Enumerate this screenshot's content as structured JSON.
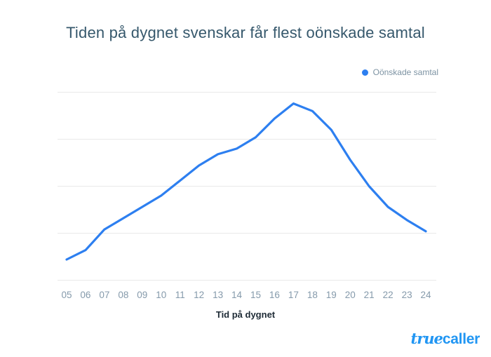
{
  "header": {
    "title": "Tiden på dygnet svenskar får flest oönskade samtal"
  },
  "legend": {
    "label": "Oönskade samtal",
    "dot_color": "#2d7ff0"
  },
  "axis": {
    "x_title": "Tid på dygnet"
  },
  "logo": {
    "part1": "true",
    "part2": "caller",
    "color": "#2196f3"
  },
  "colors": {
    "line": "#2d7ff0",
    "grid": "#e9e9e9",
    "tick_label": "#859aab",
    "title_text": "#36586c"
  },
  "chart_data": {
    "type": "line",
    "title": "Tiden på dygnet svenskar får flest oönskade samtal",
    "xlabel": "Tid på dygnet",
    "ylabel": "",
    "categories": [
      "05",
      "06",
      "07",
      "08",
      "09",
      "10",
      "11",
      "12",
      "13",
      "14",
      "15",
      "16",
      "17",
      "18",
      "19",
      "20",
      "21",
      "22",
      "23",
      "24"
    ],
    "series": [
      {
        "name": "Oönskade samtal",
        "color": "#2d7ff0",
        "values": [
          11,
          16,
          27,
          33,
          39,
          45,
          53,
          61,
          67,
          70,
          76,
          86,
          94,
          90,
          80,
          64,
          50,
          39,
          32,
          26
        ]
      }
    ],
    "ylim": [
      0,
      100
    ],
    "y_axis_labels_shown": false,
    "grid": "horizontal",
    "gridline_count": 5,
    "legend_position": "top-right"
  }
}
